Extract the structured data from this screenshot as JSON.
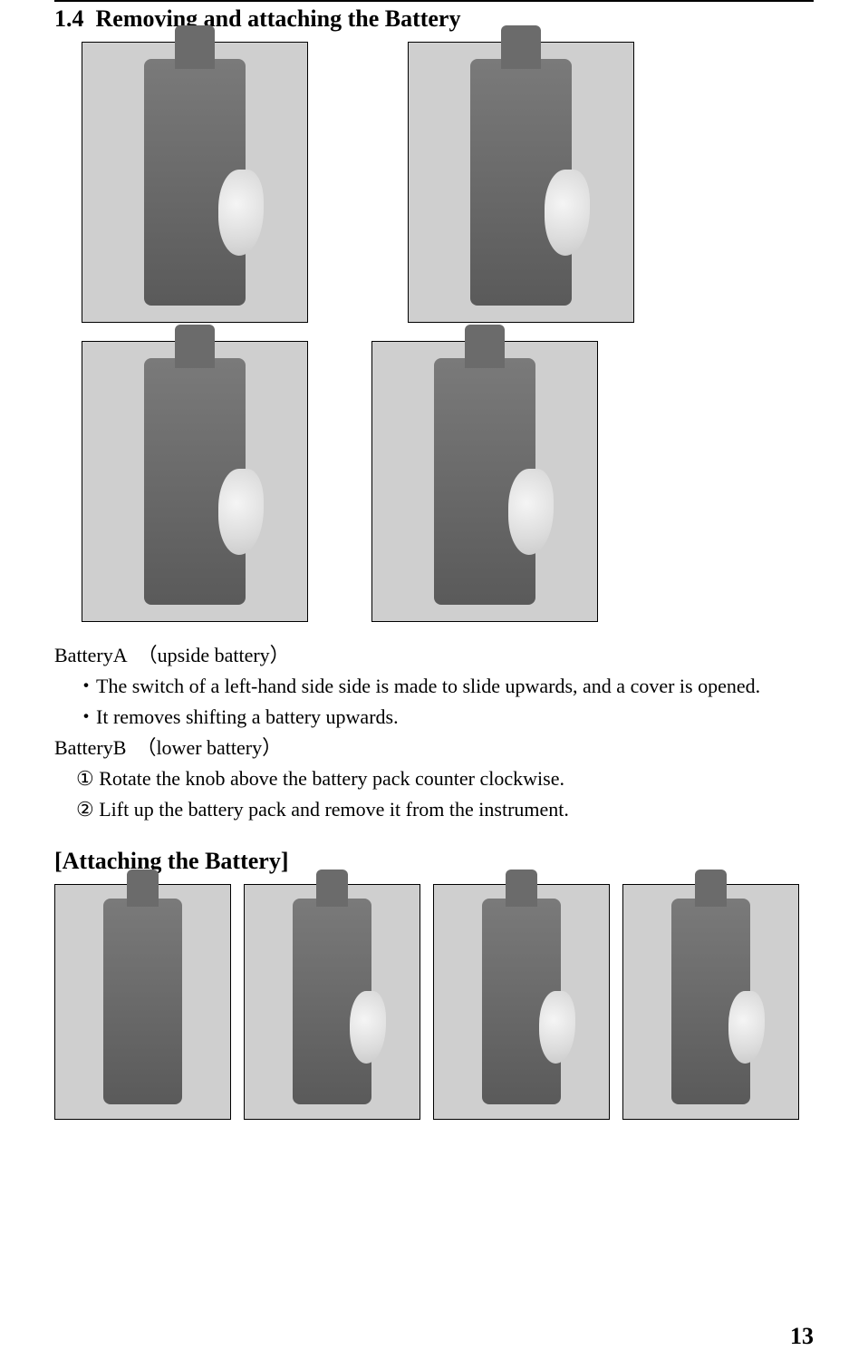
{
  "section": {
    "number": "1.4",
    "title": "Removing and attaching the Battery"
  },
  "batteryA": {
    "label": "BatteryA",
    "note": "（upside battery）",
    "step1": "・The switch of a left-hand side side is made to slide upwards, and a cover is opened.",
    "step2": "・It removes shifting a battery upwards."
  },
  "batteryB": {
    "label": "BatteryB",
    "note": "（lower battery）",
    "step1": "① Rotate the knob above the battery pack counter clockwise.",
    "step2": "② Lift up the battery pack and remove it from the instrument."
  },
  "attaching": {
    "heading": "[Attaching the Battery]"
  },
  "pageNumber": "13",
  "images": {
    "remove_top_left": "instrument-upside-cover",
    "remove_top_right": "instrument-battery-exposed",
    "remove_bottom_left": "instrument-knob-press",
    "remove_bottom_right": "instrument-battery-pull",
    "attach_1": "attach-step-1",
    "attach_2": "attach-step-2",
    "attach_3": "attach-step-3",
    "attach_4": "attach-step-4"
  },
  "colors": {
    "text": "#000000",
    "background": "#ffffff",
    "photo_border": "#000000",
    "photo_bg": "#cfcfcf",
    "device": "#6a6a6a"
  }
}
